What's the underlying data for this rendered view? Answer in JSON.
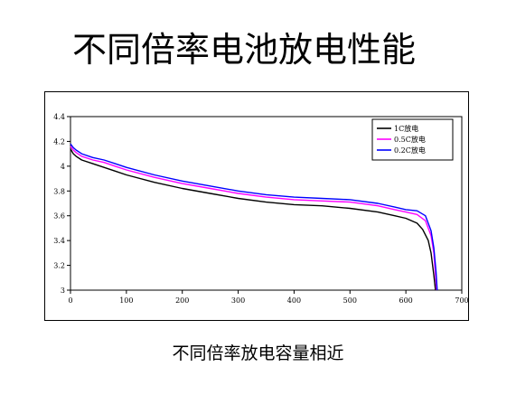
{
  "slide": {
    "title": "不同倍率电池放电性能",
    "caption": "不同倍率放电容量相近"
  },
  "chart_data": {
    "type": "line",
    "title": "",
    "xlabel": "",
    "ylabel": "",
    "xlim": [
      0,
      700
    ],
    "ylim": [
      3,
      4.4
    ],
    "x_ticks": [
      "0",
      "100",
      "200",
      "300",
      "400",
      "500",
      "600",
      "700"
    ],
    "y_ticks": [
      "3",
      "3.2",
      "3.4",
      "3.6",
      "3.8",
      "4",
      "4.2",
      "4.4"
    ],
    "legend": "top-right",
    "grid": false,
    "series": [
      {
        "name": "1C放电",
        "color": "#000000",
        "x": [
          0,
          5,
          10,
          20,
          40,
          60,
          80,
          100,
          150,
          200,
          250,
          300,
          350,
          400,
          450,
          500,
          550,
          580,
          600,
          620,
          630,
          640,
          645,
          650,
          653
        ],
        "y": [
          4.14,
          4.1,
          4.08,
          4.05,
          4.02,
          3.99,
          3.96,
          3.93,
          3.87,
          3.82,
          3.78,
          3.74,
          3.71,
          3.69,
          3.68,
          3.66,
          3.63,
          3.6,
          3.58,
          3.54,
          3.49,
          3.4,
          3.3,
          3.12,
          3.0
        ]
      },
      {
        "name": "0.5C放电",
        "color": "#ff00ff",
        "x": [
          0,
          5,
          10,
          20,
          40,
          60,
          80,
          100,
          150,
          200,
          250,
          300,
          350,
          400,
          450,
          500,
          550,
          580,
          600,
          620,
          635,
          645,
          650,
          653,
          655
        ],
        "y": [
          4.16,
          4.13,
          4.11,
          4.08,
          4.05,
          4.03,
          4.0,
          3.97,
          3.91,
          3.86,
          3.82,
          3.78,
          3.75,
          3.73,
          3.72,
          3.71,
          3.68,
          3.65,
          3.63,
          3.61,
          3.56,
          3.44,
          3.3,
          3.12,
          3.0
        ]
      },
      {
        "name": "0.2C放电",
        "color": "#0000ff",
        "x": [
          0,
          5,
          10,
          20,
          40,
          60,
          80,
          100,
          150,
          200,
          250,
          300,
          350,
          400,
          450,
          500,
          550,
          580,
          600,
          620,
          635,
          645,
          650,
          654,
          656
        ],
        "y": [
          4.18,
          4.15,
          4.13,
          4.1,
          4.07,
          4.05,
          4.02,
          3.99,
          3.93,
          3.88,
          3.84,
          3.8,
          3.77,
          3.75,
          3.74,
          3.73,
          3.7,
          3.67,
          3.65,
          3.64,
          3.6,
          3.48,
          3.34,
          3.15,
          3.0
        ]
      }
    ]
  }
}
